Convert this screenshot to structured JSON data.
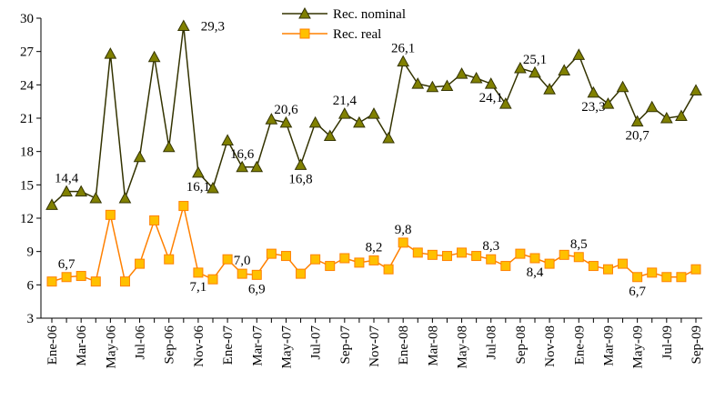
{
  "chart_data": {
    "type": "line",
    "categories": [
      "Ene-06",
      null,
      "Mar-06",
      null,
      "May-06",
      null,
      "Jul-06",
      null,
      "Sep-06",
      null,
      "Nov-06",
      null,
      "Ene-07",
      null,
      "Mar-07",
      null,
      "May-07",
      null,
      "Jul-07",
      null,
      "Sep-07",
      null,
      "Nov-07",
      null,
      "Ene-08",
      null,
      "Mar-08",
      null,
      "May-08",
      null,
      "Jul-08",
      null,
      "Sep-08",
      null,
      "Nov-08",
      null,
      "Ene-09",
      null,
      "Mar-09",
      null,
      "May-09",
      null,
      "Jul-09",
      null,
      "Sep-09"
    ],
    "series": [
      {
        "name": "Rec. nominal",
        "color": "#333300",
        "marker_color": "#808000",
        "marker": "triangle",
        "values": [
          13.2,
          14.4,
          14.4,
          13.8,
          26.8,
          13.8,
          17.5,
          26.5,
          18.4,
          29.3,
          16.1,
          14.7,
          19.0,
          16.6,
          16.6,
          20.9,
          20.6,
          16.8,
          20.6,
          19.4,
          21.4,
          20.6,
          21.4,
          19.2,
          26.1,
          24.1,
          23.8,
          23.9,
          25.0,
          24.6,
          24.1,
          22.3,
          25.5,
          25.1,
          23.6,
          25.3,
          26.7,
          23.3,
          22.3,
          23.8,
          20.7,
          22.0,
          21.0,
          21.2,
          23.5
        ],
        "value_labels": [
          null,
          "14,4",
          null,
          null,
          null,
          null,
          null,
          null,
          null,
          "29,3",
          "16,1",
          null,
          null,
          "16,6",
          null,
          null,
          "20,6",
          "16,8",
          null,
          null,
          "21,4",
          null,
          null,
          null,
          "26,1",
          null,
          null,
          null,
          null,
          null,
          "24,1",
          null,
          null,
          "25,1",
          null,
          null,
          null,
          "23,3",
          null,
          null,
          "20,7",
          null,
          null,
          null,
          null
        ]
      },
      {
        "name": "Rec. real",
        "color": "#ff8000",
        "marker_color": "#ffc000",
        "marker": "square",
        "values": [
          6.3,
          6.7,
          6.8,
          6.3,
          12.3,
          6.3,
          7.9,
          11.8,
          8.3,
          13.1,
          7.1,
          6.5,
          8.3,
          7.0,
          6.9,
          8.8,
          8.6,
          7.0,
          8.3,
          7.7,
          8.4,
          8.0,
          8.2,
          7.4,
          9.8,
          8.9,
          8.7,
          8.6,
          8.9,
          8.6,
          8.3,
          7.7,
          8.8,
          8.4,
          7.9,
          8.7,
          8.5,
          7.7,
          7.4,
          7.9,
          6.7,
          7.1,
          6.7,
          6.7,
          7.4
        ],
        "value_labels": [
          null,
          "6,7",
          null,
          null,
          null,
          null,
          null,
          null,
          null,
          null,
          "7,1",
          null,
          null,
          "7,0",
          "6,9",
          null,
          null,
          null,
          null,
          null,
          null,
          null,
          "8,2",
          null,
          "9,8",
          null,
          null,
          null,
          null,
          null,
          "8,3",
          null,
          null,
          "8,4",
          null,
          null,
          "8,5",
          null,
          null,
          null,
          "6,7",
          null,
          null,
          null,
          null
        ]
      }
    ],
    "ylim": [
      3,
      30
    ],
    "yticks": [
      3,
      6,
      9,
      12,
      15,
      18,
      21,
      24,
      27,
      30
    ],
    "grid": false,
    "legend": "top"
  }
}
